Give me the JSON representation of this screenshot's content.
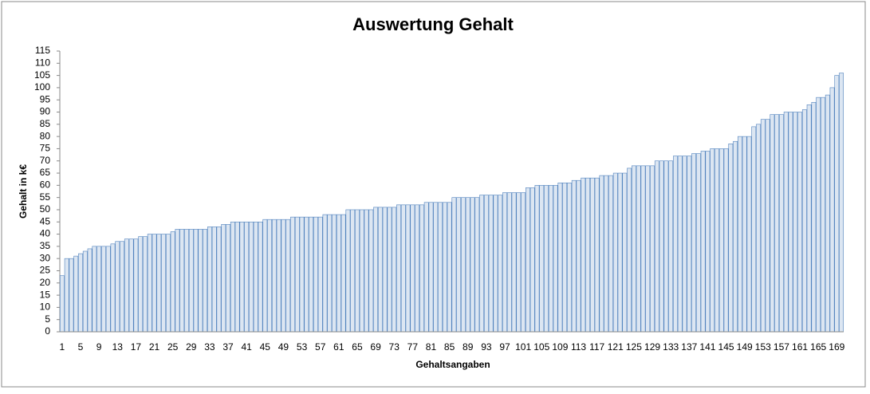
{
  "chart_data": {
    "type": "bar",
    "title": "Auswertung Gehalt",
    "x_label": "Gehaltsangaben",
    "y_label": "Gehalt in k€",
    "categories": [
      1,
      null,
      null,
      null,
      5,
      null,
      null,
      null,
      9,
      null,
      null,
      null,
      13,
      null,
      null,
      null,
      17,
      null,
      null,
      null,
      21,
      null,
      null,
      null,
      25,
      null,
      null,
      null,
      29,
      null,
      null,
      null,
      33,
      null,
      null,
      null,
      37,
      null,
      null,
      null,
      41,
      null,
      null,
      null,
      45,
      null,
      null,
      null,
      49,
      null,
      null,
      null,
      53,
      null,
      null,
      null,
      57,
      null,
      null,
      null,
      61,
      null,
      null,
      null,
      65,
      null,
      null,
      null,
      69,
      null,
      null,
      null,
      73,
      null,
      null,
      null,
      77,
      null,
      null,
      null,
      81,
      null,
      null,
      null,
      85,
      null,
      null,
      null,
      89,
      null,
      null,
      null,
      93,
      null,
      null,
      null,
      97,
      null,
      null,
      null,
      101,
      null,
      null,
      null,
      105,
      null,
      null,
      null,
      109,
      null,
      null,
      null,
      113,
      null,
      null,
      null,
      117,
      null,
      null,
      null,
      121,
      null,
      null,
      null,
      125,
      null,
      null,
      null,
      129,
      null,
      null,
      null,
      133,
      null,
      null,
      null,
      137,
      null,
      null,
      null,
      141,
      null,
      null,
      null,
      145,
      null,
      null,
      null,
      149,
      null,
      null,
      null,
      153,
      null,
      null,
      null,
      157,
      null,
      null,
      null,
      161,
      null,
      null,
      null,
      165,
      null,
      null,
      null,
      169,
      null
    ],
    "values": [
      23,
      30,
      30,
      31,
      32,
      33,
      34,
      35,
      35,
      35,
      35,
      36,
      37,
      37,
      38,
      38,
      38,
      39,
      39,
      40,
      40,
      40,
      40,
      40,
      41,
      42,
      42,
      42,
      42,
      42,
      42,
      42,
      43,
      43,
      43,
      44,
      44,
      45,
      45,
      45,
      45,
      45,
      45,
      45,
      46,
      46,
      46,
      46,
      46,
      46,
      47,
      47,
      47,
      47,
      47,
      47,
      47,
      48,
      48,
      48,
      48,
      48,
      50,
      50,
      50,
      50,
      50,
      50,
      51,
      51,
      51,
      51,
      51,
      52,
      52,
      52,
      52,
      52,
      52,
      53,
      53,
      53,
      53,
      53,
      53,
      55,
      55,
      55,
      55,
      55,
      55,
      56,
      56,
      56,
      56,
      56,
      57,
      57,
      57,
      57,
      57,
      59,
      59,
      60,
      60,
      60,
      60,
      60,
      61,
      61,
      61,
      62,
      62,
      63,
      63,
      63,
      63,
      64,
      64,
      64,
      65,
      65,
      65,
      67,
      68,
      68,
      68,
      68,
      68,
      70,
      70,
      70,
      70,
      72,
      72,
      72,
      72,
      73,
      73,
      74,
      74,
      75,
      75,
      75,
      75,
      77,
      78,
      80,
      80,
      80,
      84,
      85,
      87,
      87,
      89,
      89,
      89,
      90,
      90,
      90,
      90,
      91,
      93,
      94,
      96,
      96,
      97,
      100,
      105,
      106
    ],
    "color": "#dce6f2",
    "edge_color": "#4f81bd",
    "ylim": [
      0,
      115
    ],
    "yticks": [
      0,
      5,
      10,
      15,
      20,
      25,
      30,
      35,
      40,
      45,
      50,
      55,
      60,
      65,
      70,
      75,
      80,
      85,
      90,
      95,
      100,
      105,
      110,
      115
    ],
    "grid": false
  }
}
